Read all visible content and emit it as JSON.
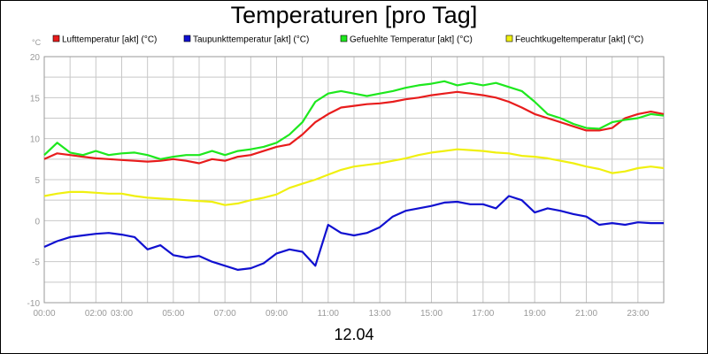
{
  "chart_data": {
    "type": "line",
    "title": "Temperaturen [pro Tag]",
    "subtitle": "12.04",
    "ylabel": "°C",
    "ylim": [
      -10,
      20
    ],
    "yticks": [
      -10,
      -5,
      0,
      5,
      10,
      15,
      20
    ],
    "x_range_hours": [
      0,
      24
    ],
    "xtick_labels": [
      {
        "hour": 0,
        "label": "00:00"
      },
      {
        "hour": 2,
        "label": "02:00"
      },
      {
        "hour": 3,
        "label": "03:00"
      },
      {
        "hour": 5,
        "label": "05:00"
      },
      {
        "hour": 7,
        "label": "07:00"
      },
      {
        "hour": 9,
        "label": "09:00"
      },
      {
        "hour": 11,
        "label": "11:00"
      },
      {
        "hour": 13,
        "label": "13:00"
      },
      {
        "hour": 15,
        "label": "15:00"
      },
      {
        "hour": 17,
        "label": "17:00"
      },
      {
        "hour": 19,
        "label": "19:00"
      },
      {
        "hour": 21,
        "label": "21:00"
      },
      {
        "hour": 23,
        "label": "23:00"
      }
    ],
    "grid": true,
    "legend_position": "top",
    "series": [
      {
        "name": "Lufttemperatur [akt] (°C)",
        "color": "#e81c1c",
        "x": [
          0,
          0.5,
          1,
          1.5,
          2,
          2.5,
          3,
          3.5,
          4,
          4.5,
          5,
          5.5,
          6,
          6.5,
          7,
          7.5,
          8,
          8.5,
          9,
          9.5,
          10,
          10.5,
          11,
          11.5,
          12,
          12.5,
          13,
          13.5,
          14,
          14.5,
          15,
          15.5,
          16,
          16.5,
          17,
          17.5,
          18,
          18.5,
          19,
          19.5,
          20,
          20.5,
          21,
          21.5,
          22,
          22.5,
          23,
          23.5,
          24
        ],
        "y": [
          7.5,
          8.2,
          8.0,
          7.8,
          7.6,
          7.5,
          7.4,
          7.3,
          7.2,
          7.3,
          7.5,
          7.3,
          7.0,
          7.5,
          7.3,
          7.8,
          8.0,
          8.5,
          9.0,
          9.3,
          10.5,
          12.0,
          13.0,
          13.8,
          14.0,
          14.2,
          14.3,
          14.5,
          14.8,
          15.0,
          15.3,
          15.5,
          15.7,
          15.5,
          15.3,
          15.0,
          14.5,
          13.8,
          13.0,
          12.5,
          12.0,
          11.5,
          11.0,
          11.0,
          11.3,
          12.5,
          13.0,
          13.3,
          13.0
        ]
      },
      {
        "name": "Taupunkttemperatur [akt] (°C)",
        "color": "#1010d0",
        "x": [
          0,
          0.5,
          1,
          1.5,
          2,
          2.5,
          3,
          3.5,
          4,
          4.5,
          5,
          5.5,
          6,
          6.5,
          7,
          7.5,
          8,
          8.5,
          9,
          9.5,
          10,
          10.5,
          11,
          11.5,
          12,
          12.5,
          13,
          13.5,
          14,
          14.5,
          15,
          15.5,
          16,
          16.5,
          17,
          17.5,
          18,
          18.5,
          19,
          19.5,
          20,
          20.5,
          21,
          21.5,
          22,
          22.5,
          23,
          23.5,
          24
        ],
        "y": [
          -3.2,
          -2.5,
          -2.0,
          -1.8,
          -1.6,
          -1.5,
          -1.7,
          -2.0,
          -3.5,
          -3.0,
          -4.2,
          -4.5,
          -4.3,
          -5.0,
          -5.5,
          -6.0,
          -5.8,
          -5.2,
          -4.0,
          -3.5,
          -3.8,
          -5.5,
          -0.5,
          -1.5,
          -1.8,
          -1.5,
          -0.8,
          0.5,
          1.2,
          1.5,
          1.8,
          2.2,
          2.3,
          2.0,
          2.0,
          1.5,
          3.0,
          2.5,
          1.0,
          1.5,
          1.2,
          0.8,
          0.5,
          -0.5,
          -0.3,
          -0.5,
          -0.2,
          -0.3,
          -0.3
        ]
      },
      {
        "name": "Gefuehlte Temperatur [akt] (°C)",
        "color": "#1ee81e",
        "x": [
          0,
          0.5,
          1,
          1.5,
          2,
          2.5,
          3,
          3.5,
          4,
          4.5,
          5,
          5.5,
          6,
          6.5,
          7,
          7.5,
          8,
          8.5,
          9,
          9.5,
          10,
          10.5,
          11,
          11.5,
          12,
          12.5,
          13,
          13.5,
          14,
          14.5,
          15,
          15.5,
          16,
          16.5,
          17,
          17.5,
          18,
          18.5,
          19,
          19.5,
          20,
          20.5,
          21,
          21.5,
          22,
          22.5,
          23,
          23.5,
          24
        ],
        "y": [
          8.0,
          9.5,
          8.3,
          8.0,
          8.5,
          8.0,
          8.2,
          8.3,
          8.0,
          7.5,
          7.8,
          8.0,
          8.0,
          8.5,
          8.0,
          8.5,
          8.7,
          9.0,
          9.5,
          10.5,
          12.0,
          14.5,
          15.5,
          15.8,
          15.5,
          15.2,
          15.5,
          15.8,
          16.2,
          16.5,
          16.7,
          17.0,
          16.5,
          16.8,
          16.5,
          16.8,
          16.3,
          15.8,
          14.5,
          13.0,
          12.5,
          11.8,
          11.3,
          11.2,
          12.0,
          12.3,
          12.5,
          13.0,
          12.8
        ]
      },
      {
        "name": "Feuchtkugeltemperatur [akt] (°C)",
        "color": "#f0f010",
        "x": [
          0,
          0.5,
          1,
          1.5,
          2,
          2.5,
          3,
          3.5,
          4,
          4.5,
          5,
          5.5,
          6,
          6.5,
          7,
          7.5,
          8,
          8.5,
          9,
          9.5,
          10,
          10.5,
          11,
          11.5,
          12,
          12.5,
          13,
          13.5,
          14,
          14.5,
          15,
          15.5,
          16,
          16.5,
          17,
          17.5,
          18,
          18.5,
          19,
          19.5,
          20,
          20.5,
          21,
          21.5,
          22,
          22.5,
          23,
          23.5,
          24
        ],
        "y": [
          3.0,
          3.3,
          3.5,
          3.5,
          3.4,
          3.3,
          3.3,
          3.0,
          2.8,
          2.7,
          2.6,
          2.5,
          2.4,
          2.3,
          1.9,
          2.1,
          2.5,
          2.8,
          3.2,
          4.0,
          4.5,
          5.0,
          5.6,
          6.2,
          6.6,
          6.8,
          7.0,
          7.3,
          7.6,
          8.0,
          8.3,
          8.5,
          8.7,
          8.6,
          8.5,
          8.3,
          8.2,
          7.9,
          7.8,
          7.6,
          7.3,
          7.0,
          6.6,
          6.3,
          5.8,
          6.0,
          6.4,
          6.6,
          6.4
        ]
      }
    ]
  }
}
